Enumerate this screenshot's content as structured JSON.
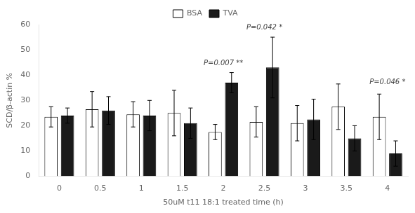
{
  "chart_data": {
    "type": "bar",
    "categories": [
      "0",
      "0.5",
      "1",
      "1.5",
      "2",
      "2.5",
      "3",
      "3.5",
      "4"
    ],
    "series": [
      {
        "name": "BSA",
        "color": "#ffffff",
        "values": [
          23.5,
          26.5,
          24.5,
          25.0,
          17.5,
          21.5,
          21.0,
          27.5,
          23.5
        ],
        "errors": [
          4.0,
          7.0,
          5.0,
          9.0,
          3.0,
          6.0,
          7.0,
          9.0,
          9.0
        ]
      },
      {
        "name": "TVA",
        "color": "#1a1a1a",
        "values": [
          24.0,
          26.0,
          24.0,
          21.0,
          37.0,
          43.0,
          22.5,
          15.0,
          9.0
        ],
        "errors": [
          3.0,
          5.5,
          6.0,
          6.0,
          4.0,
          12.0,
          8.0,
          5.0,
          5.0
        ]
      }
    ],
    "xlabel": "50uM t11 18:1 treated time (h)",
    "ylabel": "SCD/β-actin %",
    "ylim": [
      0,
      60
    ],
    "yticks": [
      0,
      10,
      20,
      30,
      40,
      50,
      60
    ],
    "grid": false,
    "legend": "top",
    "annotations": [
      {
        "text": "P=0.007 **",
        "x": "2",
        "y": 44.0
      },
      {
        "text": "P=0.042 *",
        "x": "2.5",
        "y": 58.0
      },
      {
        "text": "P=0.046 *",
        "x": "4",
        "y": 36.5
      }
    ]
  }
}
